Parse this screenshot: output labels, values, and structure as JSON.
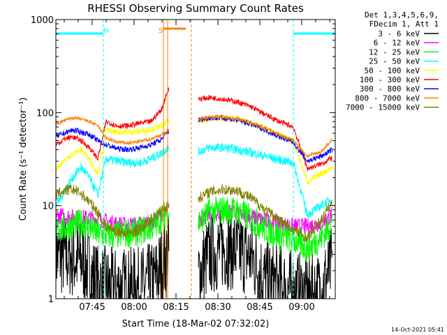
{
  "chart_data": {
    "type": "line",
    "title": "RHESSI Observing Summary Count Rates",
    "xlabel": "Start Time (18-Mar-02 07:32:02)",
    "ylabel": "Count Rate (s⁻¹ detector⁻¹)",
    "y_scale": "log",
    "ylim": [
      1,
      1000
    ],
    "xlim_minutes": [
      0,
      100
    ],
    "x_ticks": [
      {
        "label": "07:45",
        "minutes": 13
      },
      {
        "label": "08:00",
        "minutes": 28
      },
      {
        "label": "08:15",
        "minutes": 43
      },
      {
        "label": "08:30",
        "minutes": 58
      },
      {
        "label": "08:45",
        "minutes": 73
      },
      {
        "label": "09:00",
        "minutes": 88
      }
    ],
    "y_ticks": [
      {
        "label": "1",
        "value": 1
      },
      {
        "label": "10",
        "value": 10
      },
      {
        "label": "100",
        "value": 100
      },
      {
        "label": "1000",
        "value": 1000
      }
    ],
    "legend_header": [
      "Det 1,3,4,5,6,9,",
      "FDecim 1, Att 1"
    ],
    "annotations": [
      {
        "text": "N",
        "minutes": 18.0
      },
      {
        "text": "S",
        "minutes": 37.5
      }
    ],
    "night_intervals": [
      [
        0,
        17
      ],
      [
        85,
        100
      ]
    ],
    "saa_intervals": [
      [
        39.5,
        48.5
      ]
    ],
    "data_gap": [
      40.5,
      51
    ],
    "series": [
      {
        "name": "3 - 6 keV",
        "color": "#000000",
        "x": [
          0,
          5,
          10,
          15,
          20,
          25,
          30,
          35,
          40,
          51,
          55,
          60,
          65,
          70,
          75,
          80,
          85,
          90,
          95,
          99
        ],
        "y": [
          3.0,
          2.8,
          2.5,
          1.4,
          1.3,
          1.3,
          1.3,
          1.5,
          3.0,
          1.8,
          3.0,
          3.5,
          3.3,
          2.8,
          1.6,
          1.4,
          1.2,
          1.1,
          1.2,
          2.5
        ]
      },
      {
        "name": "6 - 12 keV",
        "color": "#ff00ff",
        "x": [
          0,
          5,
          10,
          15,
          20,
          25,
          30,
          35,
          40,
          51,
          55,
          60,
          65,
          70,
          75,
          80,
          85,
          90,
          95,
          99
        ],
        "y": [
          7.8,
          7.6,
          7.4,
          7.2,
          6.5,
          6.2,
          6.3,
          6.8,
          9.0,
          7.0,
          8.0,
          8.5,
          8.3,
          7.6,
          6.9,
          6.4,
          6.0,
          6.0,
          6.5,
          8.0
        ]
      },
      {
        "name": "12 - 25 keV",
        "color": "#00ff00",
        "x": [
          0,
          5,
          10,
          15,
          20,
          25,
          30,
          35,
          40,
          51,
          55,
          60,
          65,
          70,
          75,
          80,
          85,
          90,
          95,
          99
        ],
        "y": [
          5.5,
          6.0,
          6.5,
          5.0,
          4.8,
          5.0,
          5.3,
          6.0,
          8.5,
          6.5,
          8.5,
          9.0,
          8.8,
          7.2,
          5.6,
          4.8,
          4.3,
          3.5,
          4.5,
          6.5
        ]
      },
      {
        "name": "25 - 50 keV",
        "color": "#00ffff",
        "x": [
          0,
          3,
          6,
          9,
          12,
          15,
          18,
          22,
          26,
          30,
          34,
          38,
          40,
          51,
          55,
          60,
          65,
          70,
          75,
          80,
          85,
          90,
          95,
          99
        ],
        "y": [
          10,
          14,
          20,
          26,
          20,
          13,
          32,
          30,
          29,
          29,
          32,
          37,
          42,
          38,
          42,
          42,
          40,
          37,
          34,
          31,
          29,
          8,
          10,
          12
        ]
      },
      {
        "name": "50 - 100 keV",
        "color": "#ffff00",
        "x": [
          0,
          3,
          6,
          9,
          12,
          15,
          18,
          22,
          26,
          30,
          34,
          38,
          40,
          51,
          55,
          60,
          65,
          70,
          75,
          80,
          85,
          90,
          95,
          99
        ],
        "y": [
          25,
          30,
          36,
          40,
          32,
          22,
          65,
          62,
          62,
          63,
          66,
          72,
          80,
          80,
          85,
          87,
          84,
          77,
          67,
          57,
          50,
          18,
          22,
          26
        ]
      },
      {
        "name": "100 - 300 keV",
        "color": "#ff0000",
        "x": [
          0,
          3,
          6,
          9,
          12,
          15,
          18,
          22,
          26,
          30,
          34,
          38,
          40,
          51,
          55,
          60,
          65,
          70,
          75,
          80,
          85,
          90,
          95,
          99
        ],
        "y": [
          45,
          52,
          55,
          50,
          42,
          32,
          80,
          72,
          72,
          77,
          80,
          110,
          175,
          140,
          145,
          140,
          130,
          115,
          95,
          80,
          70,
          25,
          28,
          33
        ]
      },
      {
        "name": "300 - 800 keV",
        "color": "#0000ff",
        "x": [
          0,
          3,
          6,
          9,
          12,
          15,
          18,
          22,
          26,
          30,
          34,
          38,
          40,
          51,
          55,
          60,
          65,
          70,
          75,
          80,
          85,
          90,
          95,
          99
        ],
        "y": [
          55,
          60,
          65,
          62,
          58,
          50,
          45,
          41,
          40,
          42,
          45,
          52,
          62,
          83,
          88,
          87,
          83,
          75,
          65,
          55,
          48,
          30,
          34,
          40
        ]
      },
      {
        "name": "800 - 7000 keV",
        "color": "#ff8000",
        "x": [
          0,
          3,
          6,
          9,
          12,
          15,
          18,
          22,
          26,
          30,
          34,
          38,
          40,
          51,
          55,
          60,
          65,
          70,
          75,
          80,
          85,
          90,
          95,
          99
        ],
        "y": [
          75,
          82,
          88,
          85,
          80,
          72,
          53,
          48,
          47,
          49,
          52,
          58,
          65,
          85,
          90,
          90,
          86,
          78,
          68,
          58,
          50,
          34,
          38,
          52
        ]
      },
      {
        "name": "7000 - 15000 keV",
        "color": "#808000",
        "x": [
          0,
          3,
          6,
          9,
          12,
          15,
          18,
          22,
          26,
          30,
          34,
          38,
          40,
          51,
          55,
          60,
          65,
          70,
          75,
          80,
          85,
          90,
          95,
          99
        ],
        "y": [
          13,
          14.5,
          15,
          13.5,
          11,
          8.5,
          6,
          5.2,
          5,
          5.5,
          7,
          9,
          10,
          12,
          14,
          15,
          14.5,
          12,
          9,
          7,
          5.5,
          4.5,
          7,
          11
        ]
      }
    ]
  },
  "footer": {
    "timestamp": "14-Oct-2021 05:41"
  }
}
